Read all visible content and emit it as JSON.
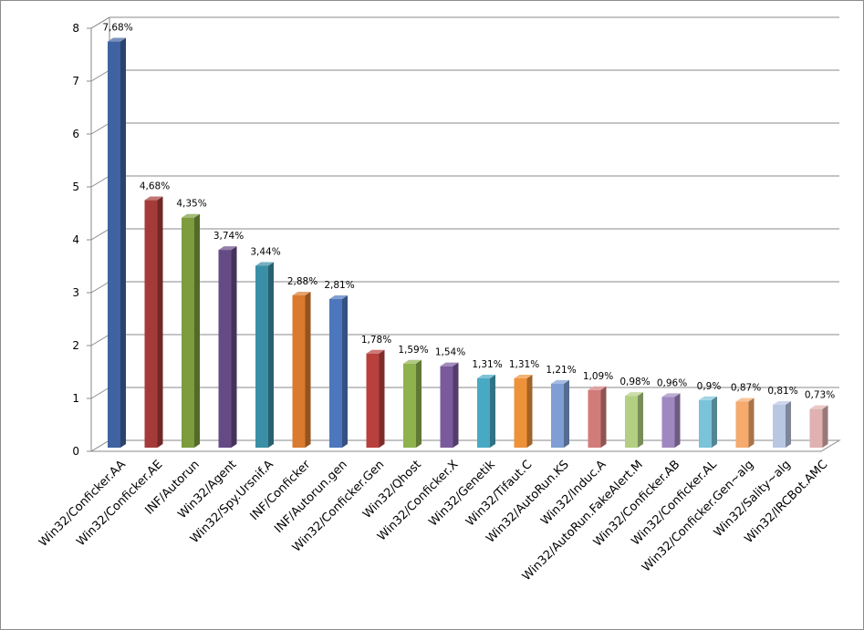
{
  "chart_data": {
    "type": "bar",
    "categories": [
      "Win32/Conficker.AA",
      "Win32/Conficker.AE",
      "INF/Autorun",
      "Win32/Agent",
      "Win32/Spy.Ursnif.A",
      "INF/Conficker",
      "INF/Autorun.gen",
      "Win32/Conficker.Gen",
      "Win32/Qhost",
      "Win32/Conficker.X",
      "Win32/Genetik",
      "Win32/Tifaut.C",
      "Win32/AutoRun.KS",
      "Win32/Induc.A",
      "Win32/AutoRun.FakeAlert.M",
      "Win32/Conficker.AB",
      "Win32/Conficker.AL",
      "Win32/Conficker.Gen~alg",
      "Win32/Sality~alg",
      "Win32/IRCBot.AMC"
    ],
    "values": [
      7.68,
      4.68,
      4.35,
      3.74,
      3.44,
      2.88,
      2.81,
      1.78,
      1.59,
      1.54,
      1.31,
      1.31,
      1.21,
      1.09,
      0.98,
      0.96,
      0.9,
      0.87,
      0.81,
      0.73
    ],
    "data_labels": [
      "7,68%",
      "4,68%",
      "4,35%",
      "3,74%",
      "3,44%",
      "2,88%",
      "2,81%",
      "1,78%",
      "1,59%",
      "1,54%",
      "1,31%",
      "1,31%",
      "1,21%",
      "1,09%",
      "0,98%",
      "0,96%",
      "0,9%",
      "0,87%",
      "0,81%",
      "0,73%"
    ],
    "colors": [
      "#3f63a0",
      "#a53b38",
      "#7c9c3e",
      "#664a86",
      "#3a8fa6",
      "#d97a2e",
      "#4d77bd",
      "#b8403d",
      "#8fb24d",
      "#7a5a9c",
      "#48a9c4",
      "#ee923a",
      "#7f9ed4",
      "#d27c7a",
      "#b3cf83",
      "#9f88bf",
      "#7ac3d9",
      "#f5aa6e",
      "#b9c7e2",
      "#dfb1b0"
    ],
    "yticks": [
      "0",
      "1",
      "2",
      "3",
      "4",
      "5",
      "6",
      "7",
      "8"
    ],
    "ylim": [
      0,
      8
    ],
    "grid": true,
    "legend": "none"
  }
}
